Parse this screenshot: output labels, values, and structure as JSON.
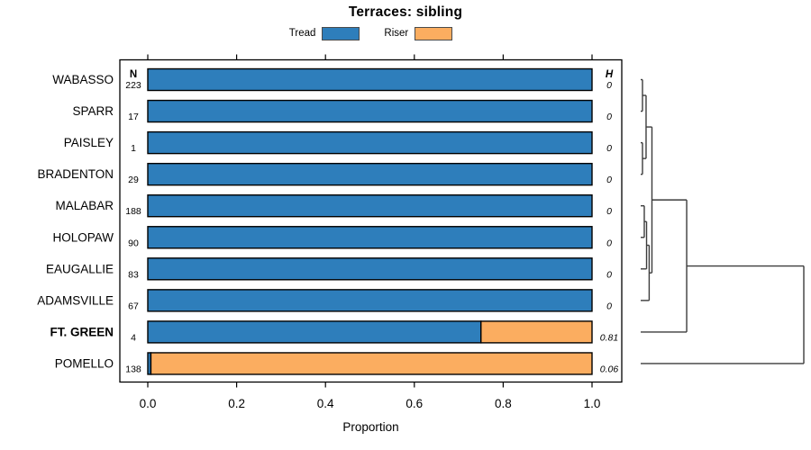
{
  "title": "Terraces: sibling",
  "chart_data": {
    "type": "bar",
    "orientation": "horizontal",
    "stacked": true,
    "title": "Terraces: sibling",
    "xlabel": "Proportion",
    "xlim": [
      0,
      1
    ],
    "grid": false,
    "legend_position": "top",
    "x_ticks": [
      {
        "v": 0.0,
        "label": "0.0"
      },
      {
        "v": 0.2,
        "label": "0.2"
      },
      {
        "v": 0.4,
        "label": "0.4"
      },
      {
        "v": 0.6,
        "label": "0.6"
      },
      {
        "v": 0.8,
        "label": "0.8"
      },
      {
        "v": 1.0,
        "label": "1.0"
      }
    ],
    "categories": [
      "WABASSO",
      "SPARR",
      "PAISLEY",
      "BRADENTON",
      "MALABAR",
      "HOLOPAW",
      "EAUGALLIE",
      "ADAMSVILLE",
      "FT. GREEN",
      "POMELLO"
    ],
    "bold_category": "FT. GREEN",
    "series": [
      {
        "name": "Tread",
        "color": "#2E7EBB",
        "values": [
          1,
          1,
          1,
          1,
          1,
          1,
          1,
          1,
          0.75,
          0.007
        ]
      },
      {
        "name": "Riser",
        "color": "#FBAD60",
        "values": [
          0,
          0,
          0,
          0,
          0,
          0,
          0,
          0,
          0.25,
          0.993
        ]
      }
    ],
    "n_column": {
      "header": "N",
      "values": [
        "223",
        "17",
        "1",
        "29",
        "188",
        "90",
        "83",
        "67",
        "4",
        "138"
      ]
    },
    "h_column": {
      "header": "H",
      "values": [
        "0",
        "0",
        "0",
        "0",
        "0",
        "0",
        "0",
        "0",
        "0.81",
        "0.06"
      ]
    },
    "dendrogram": {
      "h": 1.0,
      "children": [
        {
          "h": 0.282,
          "children": [
            {
              "h": 0.069,
              "children": [
                {
                  "h": 0.033,
                  "children": [
                    {
                      "h": 0.011,
                      "children": [
                        "WABASSO",
                        "SPARR"
                      ]
                    },
                    {
                      "h": 0.011,
                      "children": [
                        "PAISLEY",
                        "BRADENTON"
                      ]
                    }
                  ]
                },
                {
                  "h": 0.052,
                  "children": [
                    {
                      "h": 0.036,
                      "children": [
                        {
                          "h": 0.022,
                          "children": [
                            "MALABAR",
                            "HOLOPAW"
                          ]
                        },
                        "EAUGALLIE"
                      ]
                    },
                    "ADAMSVILLE"
                  ]
                }
              ]
            },
            "FT. GREEN"
          ]
        },
        "POMELLO"
      ]
    }
  }
}
